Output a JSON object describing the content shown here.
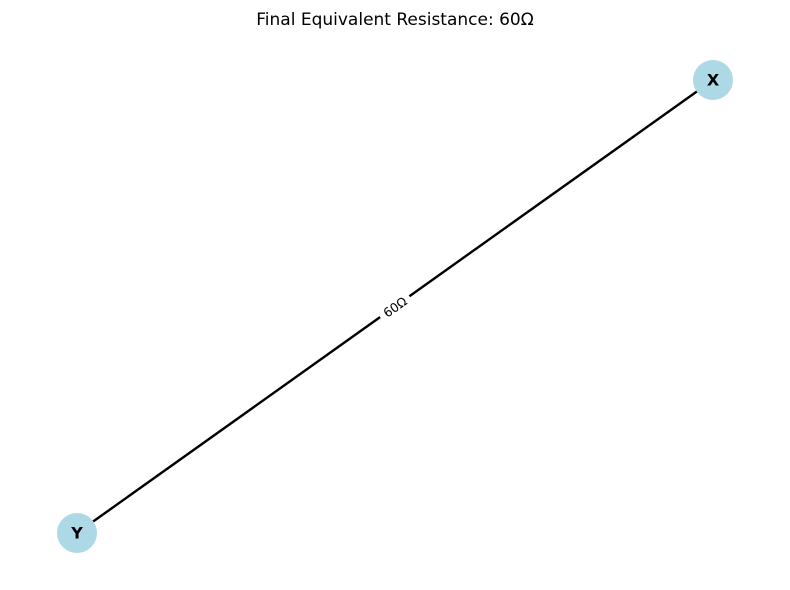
{
  "title": "Final Equivalent Resistance: 60Ω",
  "colors": {
    "node_fill": "#add8e6",
    "edge": "#000000",
    "text": "#000000",
    "background": "#ffffff"
  },
  "nodes": [
    {
      "id": "X",
      "label": "X"
    },
    {
      "id": "Y",
      "label": "Y"
    }
  ],
  "edges": [
    {
      "from": "X",
      "to": "Y",
      "label": "60Ω"
    }
  ]
}
